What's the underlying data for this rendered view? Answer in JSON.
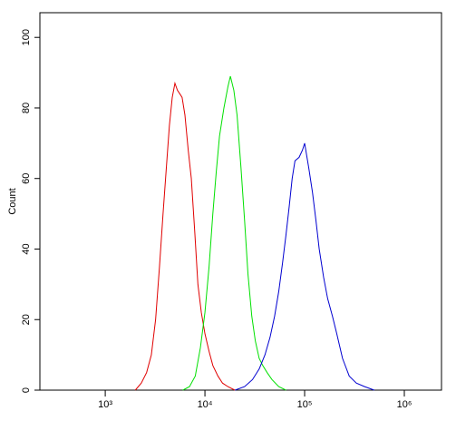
{
  "chart_data": {
    "type": "line",
    "y_label": "Count",
    "xscale": "log",
    "xlim": [
      221,
      2360000
    ],
    "ylim": [
      0,
      107
    ],
    "xticks": [
      {
        "value": 1000,
        "label": "10³"
      },
      {
        "value": 10000,
        "label": "10⁴"
      },
      {
        "value": 100000,
        "label": "10⁵"
      },
      {
        "value": 1000000,
        "label": "10⁶"
      }
    ],
    "yticks": [
      0,
      20,
      40,
      60,
      80,
      100
    ],
    "series": [
      {
        "color": "#e00000",
        "x": [
          2000,
          2300,
          2600,
          2900,
          3200,
          3500,
          3800,
          4100,
          4400,
          4700,
          5000,
          5300,
          5600,
          5900,
          6300,
          6800,
          7300,
          7900,
          8500,
          9200,
          10000,
          11000,
          12000,
          13500,
          15000,
          17000,
          20000
        ],
        "values": [
          0,
          2,
          5,
          10,
          20,
          35,
          50,
          63,
          75,
          83,
          87,
          85,
          84,
          83,
          78,
          68,
          60,
          45,
          30,
          22,
          16,
          11,
          7,
          4,
          2,
          1,
          0
        ]
      },
      {
        "color": "#00e000",
        "x": [
          6000,
          7000,
          8000,
          9000,
          10000,
          11000,
          12000,
          13000,
          14000,
          15500,
          17000,
          18000,
          19500,
          21000,
          23000,
          25000,
          27000,
          29500,
          32000,
          35000,
          38000,
          42000,
          47000,
          55000,
          65000
        ],
        "values": [
          0,
          1,
          4,
          12,
          22,
          35,
          50,
          62,
          72,
          80,
          86,
          89,
          85,
          78,
          63,
          48,
          33,
          21,
          14,
          9,
          7,
          5,
          3,
          1,
          0
        ]
      },
      {
        "color": "#0000d0",
        "x": [
          20000,
          25000,
          30000,
          35000,
          40000,
          45000,
          50000,
          55000,
          60000,
          65000,
          70000,
          75000,
          80000,
          88000,
          95000,
          100000,
          110000,
          120000,
          130000,
          140000,
          155000,
          170000,
          190000,
          210000,
          240000,
          280000,
          330000,
          400000,
          500000
        ],
        "values": [
          0,
          1,
          3,
          6,
          10,
          15,
          21,
          28,
          36,
          44,
          52,
          60,
          65,
          66,
          68,
          70,
          63,
          56,
          48,
          40,
          32,
          26,
          21,
          16,
          9,
          4,
          2,
          1,
          0
        ]
      }
    ]
  }
}
